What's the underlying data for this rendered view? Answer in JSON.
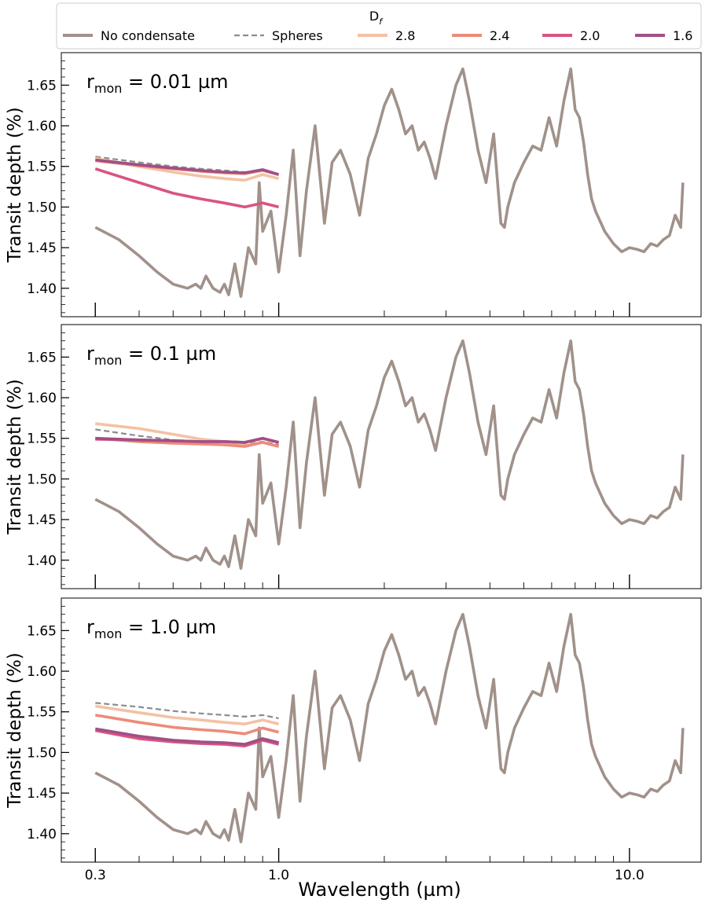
{
  "legend": {
    "title": "D",
    "title_sub": "f",
    "entries": [
      {
        "label": "No condensate",
        "color": "#a0918a",
        "dash": false
      },
      {
        "label": "Spheres",
        "color": "#8c8c8c",
        "dash": true
      },
      {
        "label": "2.8",
        "color": "#f3c2a5",
        "dash": false
      },
      {
        "label": "2.4",
        "color": "#ec8c79",
        "dash": false
      },
      {
        "label": "2.0",
        "color": "#d9557e",
        "dash": false
      },
      {
        "label": "1.6",
        "color": "#a14f86",
        "dash": false
      }
    ]
  },
  "chart_data": {
    "type": "line",
    "xlabel": "Wavelength (µm)",
    "ylabel": "Transit depth (%)",
    "x_scale": "log",
    "xlim": [
      0.24,
      16
    ],
    "ylim": [
      1.365,
      1.69
    ],
    "x_ticks": [
      0.3,
      1.0,
      10.0
    ],
    "x_tick_labels": [
      "0.3",
      "1.0",
      "10.0"
    ],
    "y_ticks": [
      1.4,
      1.45,
      1.5,
      1.55,
      1.6,
      1.65
    ],
    "y_tick_labels": [
      "1.40",
      "1.45",
      "1.50",
      "1.55",
      "1.60",
      "1.65"
    ],
    "grid": false,
    "legend_placement": "top, above panels",
    "panels": [
      {
        "label_main": "r",
        "label_sub": "mon",
        "label_rest": " = 0.01 µm",
        "series": [
          {
            "name": "No condensate",
            "x": [
              0.3,
              0.35,
              0.4,
              0.45,
              0.5,
              0.55,
              0.58,
              0.6,
              0.62,
              0.65,
              0.68,
              0.7,
              0.72,
              0.75,
              0.78,
              0.82,
              0.86,
              0.88,
              0.9,
              0.95,
              1.0,
              1.05,
              1.1,
              1.15,
              1.2,
              1.27,
              1.35,
              1.42,
              1.5,
              1.6,
              1.7,
              1.8,
              1.9,
              2.0,
              2.1,
              2.2,
              2.3,
              2.4,
              2.5,
              2.6,
              2.7,
              2.8,
              3.0,
              3.2,
              3.35,
              3.5,
              3.7,
              3.9,
              4.1,
              4.3,
              4.4,
              4.5,
              4.7,
              5.0,
              5.3,
              5.6,
              5.9,
              6.2,
              6.5,
              6.8,
              7.0,
              7.2,
              7.4,
              7.6,
              7.8,
              8.0,
              8.5,
              9.0,
              9.5,
              10.0,
              10.5,
              11.0,
              11.5,
              12.0,
              12.5,
              13.0,
              13.5,
              14.0,
              14.2
            ],
            "y": [
              1.475,
              1.46,
              1.44,
              1.42,
              1.405,
              1.4,
              1.405,
              1.4,
              1.415,
              1.4,
              1.395,
              1.405,
              1.392,
              1.43,
              1.39,
              1.45,
              1.43,
              1.53,
              1.47,
              1.495,
              1.42,
              1.49,
              1.57,
              1.44,
              1.52,
              1.6,
              1.48,
              1.555,
              1.57,
              1.54,
              1.49,
              1.56,
              1.59,
              1.625,
              1.645,
              1.62,
              1.59,
              1.6,
              1.57,
              1.58,
              1.56,
              1.535,
              1.6,
              1.65,
              1.67,
              1.63,
              1.57,
              1.53,
              1.59,
              1.48,
              1.475,
              1.5,
              1.53,
              1.555,
              1.575,
              1.57,
              1.61,
              1.575,
              1.63,
              1.67,
              1.62,
              1.61,
              1.58,
              1.54,
              1.51,
              1.495,
              1.47,
              1.455,
              1.445,
              1.45,
              1.448,
              1.445,
              1.455,
              1.452,
              1.46,
              1.465,
              1.49,
              1.475,
              1.53
            ]
          },
          {
            "name": "Spheres",
            "x": [
              0.3,
              0.4,
              0.5,
              0.6,
              0.7,
              0.8,
              0.9,
              1.0
            ],
            "y": [
              1.562,
              1.555,
              1.55,
              1.547,
              1.545,
              1.543,
              1.545,
              1.54
            ]
          },
          {
            "name": "2.8",
            "x": [
              0.3,
              0.4,
              0.5,
              0.6,
              0.7,
              0.8,
              0.9,
              1.0
            ],
            "y": [
              1.56,
              1.55,
              1.543,
              1.538,
              1.535,
              1.533,
              1.54,
              1.535
            ]
          },
          {
            "name": "2.4",
            "x": [
              0.3,
              0.4,
              0.5,
              0.6,
              0.7,
              0.8,
              0.9,
              1.0
            ],
            "y": [
              1.557,
              1.551,
              1.547,
              1.544,
              1.542,
              1.541,
              1.545,
              1.54
            ]
          },
          {
            "name": "2.0",
            "x": [
              0.3,
              0.4,
              0.5,
              0.6,
              0.7,
              0.8,
              0.9,
              1.0
            ],
            "y": [
              1.547,
              1.53,
              1.517,
              1.51,
              1.505,
              1.5,
              1.505,
              1.5
            ]
          },
          {
            "name": "1.6",
            "x": [
              0.3,
              0.4,
              0.5,
              0.6,
              0.7,
              0.8,
              0.9,
              1.0
            ],
            "y": [
              1.558,
              1.552,
              1.548,
              1.545,
              1.543,
              1.542,
              1.546,
              1.54
            ]
          }
        ]
      },
      {
        "label_main": "r",
        "label_sub": "mon",
        "label_rest": " = 0.1 µm",
        "series": [
          {
            "name": "Spheres",
            "x": [
              0.3,
              0.4,
              0.5,
              0.6,
              0.7,
              0.8,
              0.9,
              1.0
            ],
            "y": [
              1.561,
              1.553,
              1.548,
              1.546,
              1.545,
              1.543,
              1.546,
              1.542
            ]
          },
          {
            "name": "2.8",
            "x": [
              0.3,
              0.4,
              0.5,
              0.6,
              0.7,
              0.8,
              0.9,
              1.0
            ],
            "y": [
              1.568,
              1.562,
              1.555,
              1.549,
              1.546,
              1.541,
              1.545,
              1.54
            ]
          },
          {
            "name": "2.4",
            "x": [
              0.3,
              0.4,
              0.5,
              0.6,
              0.7,
              0.8,
              0.9,
              1.0
            ],
            "y": [
              1.55,
              1.546,
              1.544,
              1.543,
              1.542,
              1.54,
              1.545,
              1.54
            ]
          },
          {
            "name": "2.0",
            "x": [
              0.3,
              0.4,
              0.5,
              0.6,
              0.7,
              0.8,
              0.9,
              1.0
            ],
            "y": [
              1.549,
              1.548,
              1.547,
              1.546,
              1.546,
              1.545,
              1.55,
              1.545
            ]
          },
          {
            "name": "1.6",
            "x": [
              0.3,
              0.4,
              0.5,
              0.6,
              0.7,
              0.8,
              0.9,
              1.0
            ],
            "y": [
              1.55,
              1.548,
              1.547,
              1.546,
              1.546,
              1.545,
              1.55,
              1.545
            ]
          }
        ]
      },
      {
        "label_main": "r",
        "label_sub": "mon",
        "label_rest": " = 1.0 µm",
        "series": [
          {
            "name": "Spheres",
            "x": [
              0.3,
              0.4,
              0.5,
              0.6,
              0.7,
              0.8,
              0.9,
              1.0
            ],
            "y": [
              1.561,
              1.556,
              1.551,
              1.548,
              1.546,
              1.544,
              1.546,
              1.542
            ]
          },
          {
            "name": "2.8",
            "x": [
              0.3,
              0.4,
              0.5,
              0.6,
              0.7,
              0.8,
              0.9,
              1.0
            ],
            "y": [
              1.557,
              1.549,
              1.543,
              1.54,
              1.537,
              1.535,
              1.54,
              1.535
            ]
          },
          {
            "name": "2.4",
            "x": [
              0.3,
              0.4,
              0.5,
              0.6,
              0.7,
              0.8,
              0.9,
              1.0
            ],
            "y": [
              1.546,
              1.537,
              1.531,
              1.528,
              1.526,
              1.523,
              1.53,
              1.525
            ]
          },
          {
            "name": "2.0",
            "x": [
              0.3,
              0.4,
              0.5,
              0.6,
              0.7,
              0.8,
              0.9,
              1.0
            ],
            "y": [
              1.527,
              1.517,
              1.513,
              1.511,
              1.51,
              1.508,
              1.515,
              1.51
            ]
          },
          {
            "name": "1.6",
            "x": [
              0.3,
              0.4,
              0.5,
              0.6,
              0.7,
              0.8,
              0.9,
              1.0
            ],
            "y": [
              1.529,
              1.52,
              1.515,
              1.513,
              1.512,
              1.51,
              1.517,
              1.512
            ]
          }
        ]
      }
    ]
  }
}
